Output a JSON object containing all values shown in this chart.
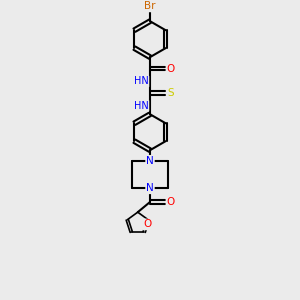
{
  "background_color": "#ebebeb",
  "atom_colors": {
    "N": "#0000ff",
    "O": "#ff0000",
    "S": "#cccc00",
    "Br": "#cc6600"
  },
  "bond_color": "#000000",
  "figsize": [
    3.0,
    3.0
  ],
  "dpi": 100,
  "xlim": [
    0,
    10
  ],
  "ylim": [
    0,
    14
  ]
}
